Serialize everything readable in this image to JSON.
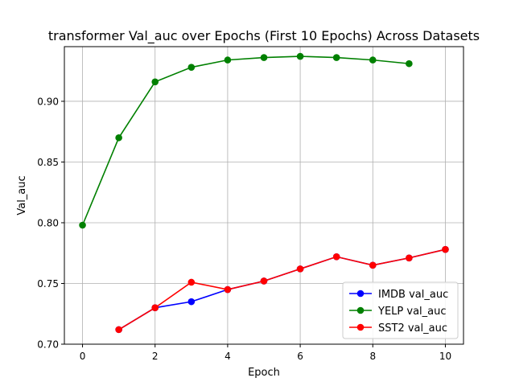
{
  "chart_data": {
    "type": "line",
    "title": "transformer Val_auc over Epochs (First 10 Epochs) Across Datasets",
    "xlabel": "Epoch",
    "ylabel": "Val_auc",
    "xlim": [
      -0.5,
      10.5
    ],
    "ylim": [
      0.7,
      0.945
    ],
    "xticks": [
      0,
      2,
      4,
      6,
      8,
      10
    ],
    "xtick_labels": [
      "0",
      "2",
      "4",
      "6",
      "8",
      "10"
    ],
    "yticks": [
      0.7,
      0.75,
      0.8,
      0.85,
      0.9
    ],
    "ytick_labels": [
      "0.70",
      "0.75",
      "0.80",
      "0.85",
      "0.90"
    ],
    "grid": true,
    "legend_position": "lower-right",
    "series": [
      {
        "name": "IMDB val_auc",
        "color": "#0000ff",
        "x": [
          1,
          2,
          3,
          4,
          5,
          6,
          7,
          8,
          9,
          10
        ],
        "y": [
          0.712,
          0.73,
          0.735,
          0.745,
          0.752,
          0.762,
          0.772,
          0.765,
          0.771,
          0.778
        ]
      },
      {
        "name": "YELP val_auc",
        "color": "#008000",
        "x": [
          0,
          1,
          2,
          3,
          4,
          5,
          6,
          7,
          8,
          9
        ],
        "y": [
          0.798,
          0.87,
          0.916,
          0.928,
          0.934,
          0.936,
          0.937,
          0.936,
          0.934,
          0.931
        ]
      },
      {
        "name": "SST2 val_auc",
        "color": "#ff0000",
        "x": [
          1,
          2,
          3,
          4,
          5,
          6,
          7,
          8,
          9,
          10
        ],
        "y": [
          0.712,
          0.73,
          0.751,
          0.745,
          0.752,
          0.762,
          0.772,
          0.765,
          0.771,
          0.778
        ]
      }
    ]
  }
}
